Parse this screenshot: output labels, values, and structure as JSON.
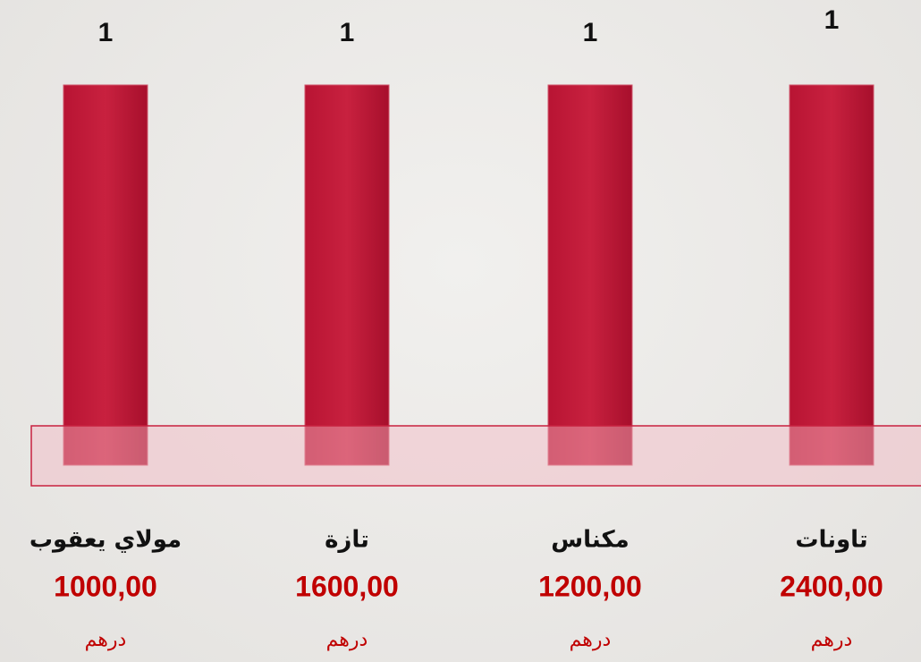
{
  "chart_data": {
    "type": "bar",
    "categories": [
      "مولاي يعقوب",
      "تازة",
      "مكناس",
      "تاونات"
    ],
    "values": [
      1,
      1,
      1,
      1
    ],
    "amounts": [
      "1000,00",
      "1600,00",
      "1200,00",
      "2400,00"
    ],
    "currency": "درهم",
    "color": "#c41e3a"
  }
}
